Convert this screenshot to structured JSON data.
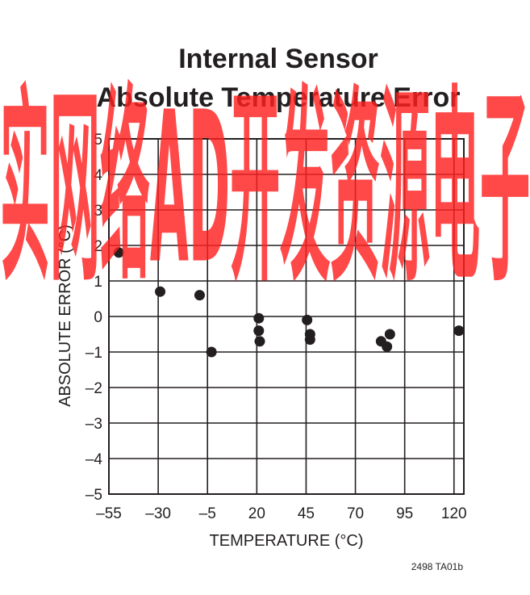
{
  "chart_data": {
    "type": "scatter",
    "title_line1": "Internal Sensor",
    "title_line2": "Absolute Temperature Error",
    "xlabel": "TEMPERATURE (°C)",
    "ylabel": "ABSOLUTE ERROR (°C)",
    "xlim": [
      -55,
      125
    ],
    "ylim": [
      -5,
      5
    ],
    "x_ticks": [
      -55,
      -30,
      -5,
      20,
      45,
      70,
      95,
      120
    ],
    "x_tick_labels": [
      "–55",
      "–30",
      "–5",
      "20",
      "45",
      "70",
      "95",
      "120"
    ],
    "y_ticks": [
      5,
      4,
      3,
      2,
      1,
      0,
      -1,
      -2,
      -3,
      -4,
      -5
    ],
    "y_tick_labels": [
      "5",
      "4",
      "3",
      "2",
      "1",
      "0",
      "–1",
      "–2",
      "–3",
      "–4",
      "–5"
    ],
    "grid": true,
    "marker_color": "#231f20",
    "points": [
      {
        "x": -50,
        "y": 1.8
      },
      {
        "x": -29,
        "y": 0.7
      },
      {
        "x": -9,
        "y": 0.6
      },
      {
        "x": -3,
        "y": -1.0
      },
      {
        "x": 21,
        "y": -0.05
      },
      {
        "x": 21,
        "y": -0.4
      },
      {
        "x": 21.5,
        "y": -0.7
      },
      {
        "x": 45.5,
        "y": -0.1
      },
      {
        "x": 47,
        "y": -0.5
      },
      {
        "x": 47,
        "y": -0.65
      },
      {
        "x": 83,
        "y": -0.7
      },
      {
        "x": 86,
        "y": -0.85
      },
      {
        "x": 87.5,
        "y": -0.5
      },
      {
        "x": 122.5,
        "y": -0.4
      }
    ]
  },
  "figure_code": "2498 TA01b",
  "colors": {
    "ink": "#231f20",
    "watermark": "#ff2020"
  },
  "watermark": "实网络AD开发资源电子"
}
